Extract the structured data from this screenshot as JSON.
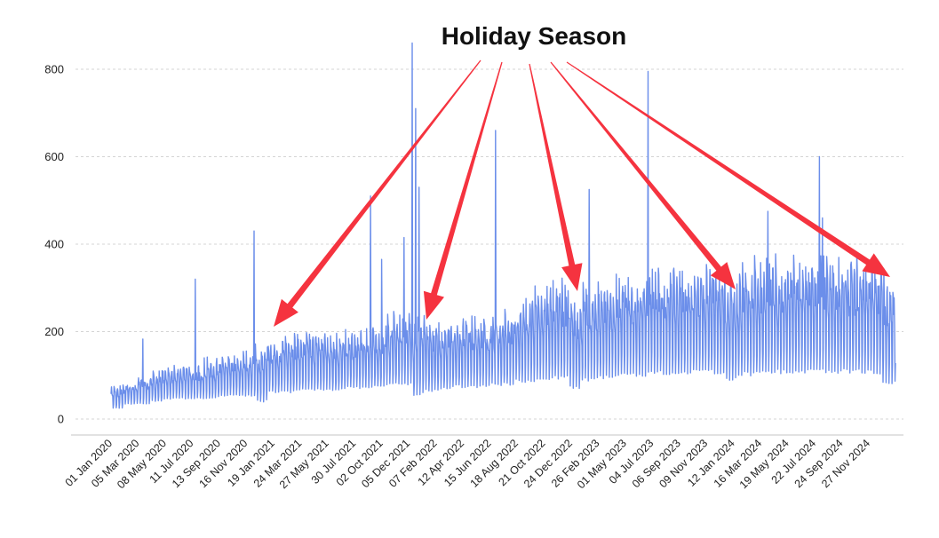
{
  "chart_data": {
    "type": "line",
    "title": "Holiday Season",
    "xlabel": "",
    "ylabel": "",
    "x_range": [
      "2020-01-01",
      "2024-12-31"
    ],
    "ylim": [
      0,
      800
    ],
    "grid": true,
    "legend": "none",
    "series_color": "#6b8eea",
    "arrow_color": "#f5333f",
    "y_ticks": [
      "0",
      "200",
      "400",
      "600",
      "800"
    ],
    "y_tick_values": [
      0,
      200,
      400,
      600,
      800
    ],
    "x_ticks": [
      "01 Jan 2020",
      "05 Mar 2020",
      "08 May 2020",
      "11 Jul 2020",
      "13 Sep 2020",
      "16 Nov 2020",
      "19 Jan 2021",
      "24 Mar 2021",
      "27 May 2021",
      "30 Jul 2021",
      "02 Oct 2021",
      "05 Dec 2021",
      "07 Feb 2022",
      "12 Apr 2022",
      "15 Jun 2022",
      "18 Aug 2022",
      "21 Oct 2022",
      "24 Dec 2022",
      "26 Feb 2023",
      "01 May 2023",
      "04 Jul 2023",
      "06 Sep 2023",
      "09 Nov 2023",
      "12 Jan 2024",
      "16 Mar 2024",
      "19 May 2024",
      "22 Jul 2024",
      "24 Sep 2024",
      "27 Nov 2024"
    ],
    "monthly_envelope": {
      "months": [
        "2020-01",
        "2020-02",
        "2020-03",
        "2020-04",
        "2020-05",
        "2020-06",
        "2020-07",
        "2020-08",
        "2020-09",
        "2020-10",
        "2020-11",
        "2020-12",
        "2021-01",
        "2021-02",
        "2021-03",
        "2021-04",
        "2021-05",
        "2021-06",
        "2021-07",
        "2021-08",
        "2021-09",
        "2021-10",
        "2021-11",
        "2021-12",
        "2022-01",
        "2022-02",
        "2022-03",
        "2022-04",
        "2022-05",
        "2022-06",
        "2022-07",
        "2022-08",
        "2022-09",
        "2022-10",
        "2022-11",
        "2022-12",
        "2023-01",
        "2023-02",
        "2023-03",
        "2023-04",
        "2023-05",
        "2023-06",
        "2023-07",
        "2023-08",
        "2023-09",
        "2023-10",
        "2023-11",
        "2023-12",
        "2024-01",
        "2024-02",
        "2024-03",
        "2024-04",
        "2024-05",
        "2024-06",
        "2024-07",
        "2024-08",
        "2024-09",
        "2024-10",
        "2024-11",
        "2024-12"
      ],
      "high": [
        70,
        80,
        90,
        100,
        110,
        115,
        115,
        125,
        130,
        135,
        140,
        150,
        170,
        180,
        180,
        185,
        185,
        180,
        185,
        190,
        200,
        220,
        230,
        220,
        200,
        210,
        215,
        215,
        220,
        220,
        230,
        250,
        270,
        280,
        290,
        250,
        280,
        290,
        290,
        300,
        300,
        310,
        310,
        320,
        320,
        320,
        330,
        300,
        320,
        330,
        330,
        330,
        330,
        335,
        335,
        335,
        335,
        335,
        330,
        300
      ],
      "low": [
        20,
        30,
        30,
        35,
        40,
        40,
        40,
        40,
        45,
        45,
        45,
        30,
        50,
        50,
        55,
        55,
        55,
        55,
        60,
        60,
        60,
        65,
        65,
        40,
        50,
        55,
        60,
        60,
        60,
        65,
        65,
        70,
        70,
        75,
        75,
        55,
        70,
        75,
        75,
        80,
        80,
        85,
        85,
        80,
        85,
        85,
        85,
        70,
        80,
        85,
        85,
        85,
        85,
        85,
        85,
        85,
        85,
        85,
        85,
        60
      ]
    },
    "spikes": [
      {
        "date": "2020-03-15",
        "value": 183
      },
      {
        "date": "2020-07-15",
        "value": 320
      },
      {
        "date": "2020-11-29",
        "value": 430
      },
      {
        "date": "2021-08-27",
        "value": 510
      },
      {
        "date": "2021-09-22",
        "value": 365
      },
      {
        "date": "2021-11-13",
        "value": 415
      },
      {
        "date": "2021-12-02",
        "value": 860
      },
      {
        "date": "2021-12-10",
        "value": 710
      },
      {
        "date": "2021-12-18",
        "value": 530
      },
      {
        "date": "2022-06-14",
        "value": 660
      },
      {
        "date": "2023-01-18",
        "value": 525
      },
      {
        "date": "2023-06-04",
        "value": 795
      },
      {
        "date": "2024-03-09",
        "value": 475
      },
      {
        "date": "2024-07-07",
        "value": 600
      },
      {
        "date": "2024-07-14",
        "value": 460
      }
    ],
    "annotation": {
      "text": "Holiday Season",
      "arrow_targets": [
        "2020-12-25",
        "2021-12-25",
        "2022-12-25",
        "2023-12-25",
        "2024-12-25"
      ]
    }
  }
}
